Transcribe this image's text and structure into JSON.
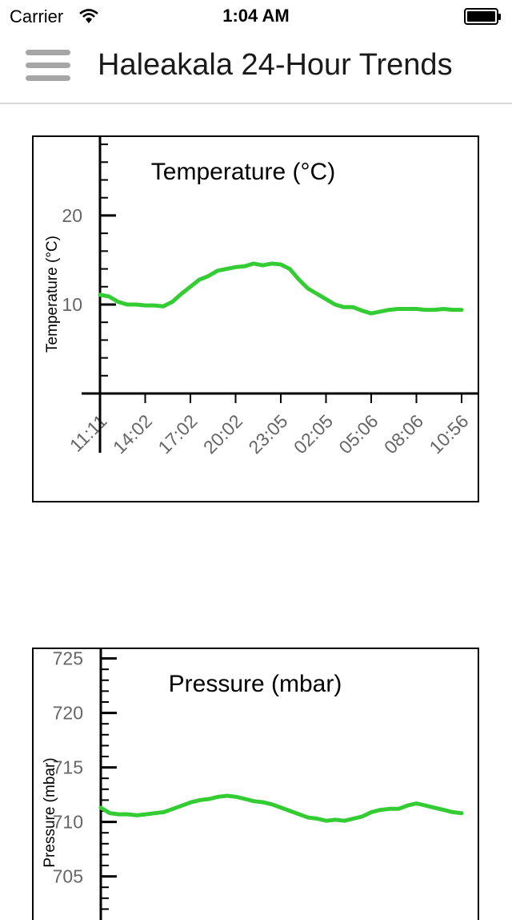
{
  "status_bar": {
    "carrier": "Carrier",
    "time": "1:04 AM",
    "wifi_icon": "wifi-icon",
    "battery_icon": "battery-icon"
  },
  "nav": {
    "menu_icon": "hamburger-menu-icon",
    "title": "Haleakala 24-Hour Trends"
  },
  "colors": {
    "series": "#33cc33",
    "axis": "#000000",
    "tick_label": "#666666",
    "nav_divider": "#d9d9d9",
    "menu_icon": "#a6a6a6"
  },
  "chart_data": [
    {
      "type": "line",
      "title": "Temperature (°C)",
      "ylabel": "Temperature (°C)",
      "xlabel": "",
      "ylim": [
        0,
        29
      ],
      "yticks": [
        10,
        20
      ],
      "grid": false,
      "x_tick_labels": [
        "11:11",
        "14:02",
        "17:02",
        "20:02",
        "23:05",
        "02:05",
        "05:06",
        "08:06",
        "10:56"
      ],
      "x_range": [
        0,
        8
      ],
      "series": [
        {
          "x": [
            0,
            0.2,
            0.4,
            0.6,
            0.8,
            1.0,
            1.2,
            1.4,
            1.6,
            1.8,
            2.0,
            2.2,
            2.4,
            2.6,
            2.8,
            3.0,
            3.2,
            3.4,
            3.6,
            3.8,
            4.0,
            4.2,
            4.4,
            4.6,
            4.8,
            5.0,
            5.2,
            5.4,
            5.6,
            5.8,
            6.0,
            6.2,
            6.4,
            6.6,
            6.8,
            7.0,
            7.2,
            7.4,
            7.6,
            7.8,
            8.0
          ],
          "values": [
            11.1,
            10.9,
            10.3,
            10.0,
            10.0,
            9.9,
            9.9,
            9.8,
            10.3,
            11.2,
            12.0,
            12.8,
            13.2,
            13.8,
            14.0,
            14.2,
            14.3,
            14.6,
            14.4,
            14.6,
            14.5,
            14.0,
            12.8,
            11.8,
            11.2,
            10.6,
            10.0,
            9.7,
            9.7,
            9.3,
            9.0,
            9.2,
            9.4,
            9.5,
            9.5,
            9.5,
            9.4,
            9.4,
            9.5,
            9.4,
            9.4
          ]
        }
      ]
    },
    {
      "type": "line",
      "title": "Pressure (mbar)",
      "ylabel": "Pressure (mbar)",
      "xlabel": "",
      "ylim": [
        701,
        726
      ],
      "yticks": [
        705,
        710,
        715,
        720,
        725
      ],
      "grid": false,
      "x_range": [
        0,
        8
      ],
      "series": [
        {
          "x": [
            0,
            0.2,
            0.4,
            0.6,
            0.8,
            1.0,
            1.2,
            1.4,
            1.6,
            1.8,
            2.0,
            2.2,
            2.4,
            2.6,
            2.8,
            3.0,
            3.2,
            3.4,
            3.6,
            3.8,
            4.0,
            4.2,
            4.4,
            4.6,
            4.8,
            5.0,
            5.2,
            5.4,
            5.6,
            5.8,
            6.0,
            6.2,
            6.4,
            6.6,
            6.8,
            7.0,
            7.2,
            7.4,
            7.6,
            7.8,
            8.0
          ],
          "values": [
            711.3,
            710.8,
            710.7,
            710.7,
            710.6,
            710.7,
            710.8,
            710.9,
            711.2,
            711.5,
            711.8,
            712.0,
            712.1,
            712.3,
            712.4,
            712.3,
            712.1,
            711.9,
            711.8,
            711.6,
            711.3,
            711.0,
            710.7,
            710.4,
            710.3,
            710.1,
            710.2,
            710.1,
            710.3,
            710.5,
            710.9,
            711.1,
            711.2,
            711.2,
            711.5,
            711.7,
            711.5,
            711.3,
            711.1,
            710.9,
            710.8
          ]
        }
      ]
    }
  ]
}
